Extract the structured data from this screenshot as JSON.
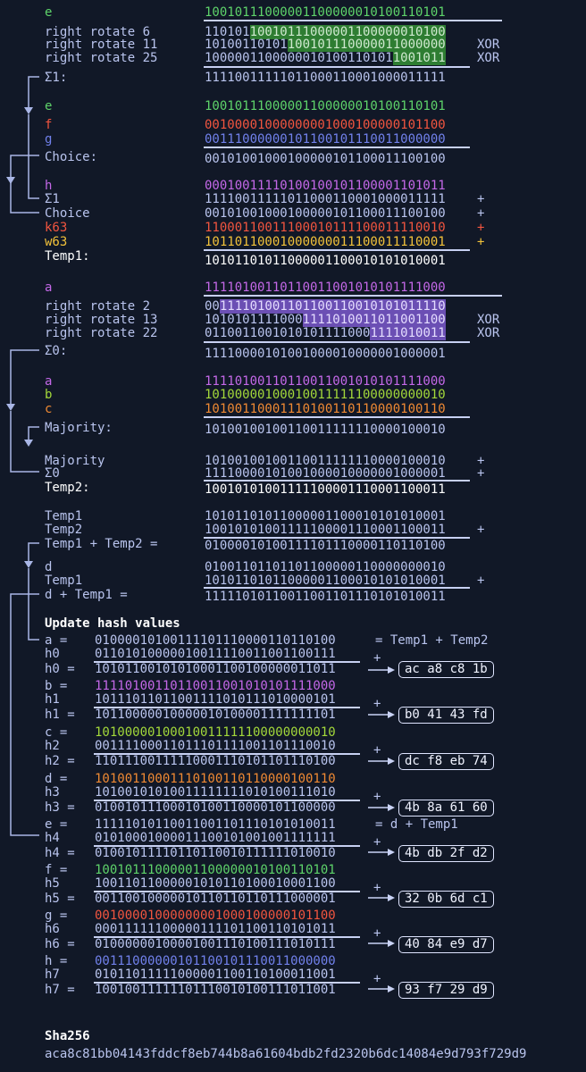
{
  "colors": {
    "text": "#b9c4ee",
    "bg": "#111827",
    "e": "#5ed36a",
    "f": "#f2553f",
    "g": "#7181ec",
    "a": "#c468e8",
    "b": "#a3d83a",
    "c": "#f08a33",
    "w": "#f2c23a",
    "highlight": "#2e7d32"
  },
  "sigma1": {
    "e_label": "e",
    "e_value": "10010111000001100000010100110101",
    "rot6_label": "right rotate 6",
    "rot6_pre": "110101",
    "rot6_hl": "10010111000001100000010100",
    "rot11_label": "right rotate 11",
    "rot11_pre": "10100110101",
    "rot11_hl": "100101110000011000000",
    "rot11_op": "XOR",
    "rot25_label": "right rotate 25",
    "rot25_pre": "1000001100000010100110101",
    "rot25_hl": "1001011",
    "rot25_op": "XOR",
    "result_label": "Σ1:",
    "result": "11110011111011000110001000011111"
  },
  "choice": {
    "e_label": "e",
    "e_value": "10010111000001100000010100110101",
    "f_label": "f",
    "f_value": "00100001000000001000100000101100",
    "g_label": "g",
    "g_value": "00111000000101100101110011000000",
    "label": "Choice:",
    "value": "00101001000100000101100011100100"
  },
  "temp1": {
    "h_label": "h",
    "h_value": "00010011110100100101100001101011",
    "s1_label": "Σ1",
    "s1_value": "11110011111011000110001000011111",
    "s1_op": "+",
    "ch_label": "Choice",
    "ch_value": "00101001000100000101100011100100",
    "ch_op": "+",
    "k_label": "k63",
    "k_value": "11000110011100010111100011110010",
    "k_op": "+",
    "w_label": "w63",
    "w_value": "10110110001000000011100011110001",
    "w_op": "+",
    "label": "Temp1:",
    "value": "10101101011000001100010101010001"
  },
  "sigma0": {
    "a_label": "a",
    "a_value": "11110100110110011001010101111000",
    "rot2_label": "right rotate 2",
    "rot2_pre": "00",
    "rot2_hl": "111101001101100110010101011110",
    "rot13_label": "right rotate 13",
    "rot13_pre": "1010101111000",
    "rot13_hl": "1111010011011001100",
    "rot13_op": "XOR",
    "rot22_label": "right rotate 22",
    "rot22_pre": "0110011001010101111000",
    "rot22_hl": "1111010011",
    "rot22_op": "XOR",
    "result_label": "Σ0:",
    "result": "11110000101001000010000001000001"
  },
  "majority": {
    "a_label": "a",
    "a_value": "11110100110110011001010101111000",
    "b_label": "b",
    "b_value": "10100000100010011111100000000010",
    "c_label": "c",
    "c_value": "10100110001110100110110000100110",
    "label": "Majority:",
    "value": "10100100100110011111110000100010"
  },
  "temp2": {
    "maj_label": "Majority",
    "maj_value": "10100100100110011111110000100010",
    "maj_op": "+",
    "s0_label": "Σ0",
    "s0_value": "11110000101001000010000001000001",
    "s0_op": "+",
    "label": "Temp2:",
    "value": "10010101001111100001110001100011"
  },
  "sum12": {
    "t1_label": "Temp1",
    "t1_value": "10101101011000001100010101010001",
    "t2_label": "Temp2",
    "t2_value": "10010101001111100001110001100011",
    "t2_op": "+",
    "label": "Temp1 + Temp2 =",
    "value": "01000010100111101110000110110100"
  },
  "sumd": {
    "d_label": "d",
    "d_value": "01001101101101100000110000000010",
    "t1_label": "Temp1",
    "t1_value": "10101101011000001100010101010001",
    "t1_op": "+",
    "label": "d + Temp1 =",
    "value": "11111010110011001101110101010011"
  },
  "update": {
    "title": "Update hash values",
    "rows": [
      {
        "var": "a =",
        "var_value": "01000010100111101110000110110100",
        "note": "= Temp1 + Temp2",
        "h": "h0",
        "h_value": "01101010000010011110011001100111",
        "op": "+",
        "res": "h0 =",
        "res_value": "10101100101010001100100000011011",
        "hex": "ac a8 c8 1b"
      },
      {
        "var": "b =",
        "var_value": "11110100110110011001010101111000",
        "note": "",
        "h": "h1",
        "h_value": "10111011011001111010111010000101",
        "op": "+",
        "res": "h1 =",
        "res_value": "10110000010000010100001111111101",
        "hex": "b0 41 43 fd"
      },
      {
        "var": "c =",
        "var_value": "10100000100010011111100000000010",
        "note": "",
        "h": "h2",
        "h_value": "00111100011011101111001101110010",
        "op": "+",
        "res": "h2 =",
        "res_value": "11011100111110001110101101110100",
        "hex": "dc f8 eb 74"
      },
      {
        "var": "d =",
        "var_value": "10100110001110100110110000100110",
        "note": "",
        "h": "h3",
        "h_value": "10100101010011111111010100111010",
        "op": "+",
        "res": "h3 =",
        "res_value": "01001011100010100110000101100000",
        "hex": "4b 8a 61 60"
      },
      {
        "var": "e =",
        "var_value": "11111010110011001101110101010011",
        "note": "= d + Temp1",
        "h": "h4",
        "h_value": "01010001000011100101001001111111",
        "op": "+",
        "res": "h4 =",
        "res_value": "01001011110110110010111111010010",
        "hex": "4b db 2f d2"
      },
      {
        "var": "f =",
        "var_value": "10010111000001100000010100110101",
        "note": "",
        "h": "h5",
        "h_value": "10011011000001010110100010001100",
        "op": "+",
        "res": "h5 =",
        "res_value": "00110010000010110110110111000001",
        "hex": "32 0b 6d c1"
      },
      {
        "var": "g =",
        "var_value": "00100001000000001000100000101100",
        "note": "",
        "h": "h6",
        "h_value": "00011111100000111101100110101011",
        "op": "+",
        "res": "h6 =",
        "res_value": "01000000100001001110100111010111",
        "hex": "40 84 e9 d7"
      },
      {
        "var": "h =",
        "var_value": "00111000000101100101110011000000",
        "note": "",
        "h": "h7",
        "h_value": "01011011111000001100110100011001",
        "op": "+",
        "res": "h7 =",
        "res_value": "10010011111101110010100111011001",
        "hex": "93 f7 29 d9"
      }
    ]
  },
  "sha": {
    "label": "Sha256",
    "value": "aca8c81bb04143fddcf8eb744b8a61604bdb2fd2320b6dc14084e9d793f729d9"
  }
}
